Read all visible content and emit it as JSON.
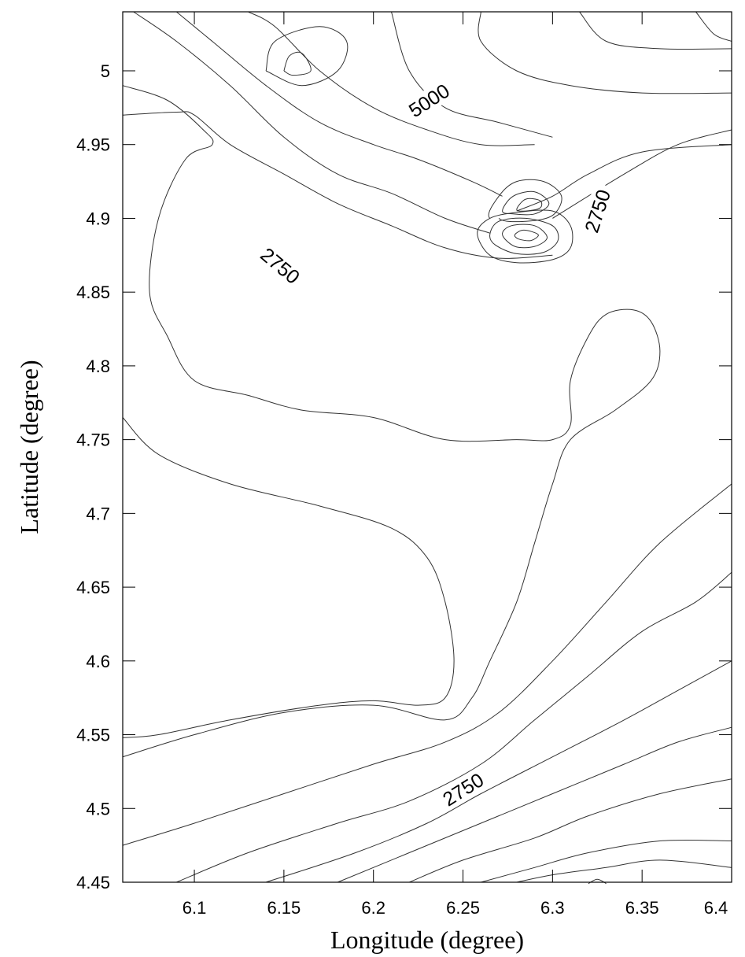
{
  "chart_data": {
    "type": "contour",
    "title": "",
    "xlabel": "Longitude (degree)",
    "ylabel": "Latitude (degree)",
    "xlim": [
      6.06,
      6.4
    ],
    "ylim": [
      4.45,
      5.04
    ],
    "x_ticks": [
      {
        "value": 6.1,
        "label": "6.1"
      },
      {
        "value": 6.15,
        "label": "6.15"
      },
      {
        "value": 6.2,
        "label": "6.2"
      },
      {
        "value": 6.25,
        "label": "6.25"
      },
      {
        "value": 6.3,
        "label": "6.3"
      },
      {
        "value": 6.35,
        "label": "6.35"
      },
      {
        "value": 6.4,
        "label": "6.4"
      }
    ],
    "y_ticks": [
      {
        "value": 4.45,
        "label": "4.45"
      },
      {
        "value": 4.5,
        "label": "4.5"
      },
      {
        "value": 4.55,
        "label": "4.55"
      },
      {
        "value": 4.6,
        "label": "4.6"
      },
      {
        "value": 4.65,
        "label": "4.65"
      },
      {
        "value": 4.7,
        "label": "4.7"
      },
      {
        "value": 4.75,
        "label": "4.75"
      },
      {
        "value": 4.8,
        "label": "4.8"
      },
      {
        "value": 4.85,
        "label": "4.85"
      },
      {
        "value": 4.9,
        "label": "4.9"
      },
      {
        "value": 4.95,
        "label": "4.95"
      },
      {
        "value": 5,
        "label": "5"
      }
    ],
    "contour_labels": [
      {
        "text": "5000",
        "x": 6.231,
        "y": 4.98,
        "angle": -33
      },
      {
        "text": "2750",
        "x": 6.148,
        "y": 4.868,
        "angle": 40
      },
      {
        "text": "2750",
        "x": 6.325,
        "y": 4.905,
        "angle": -72
      },
      {
        "text": "2750",
        "x": 6.25,
        "y": 4.513,
        "angle": -32
      }
    ],
    "contours": [
      [
        [
          6.14,
          5.0
        ],
        [
          6.145,
          5.02
        ],
        [
          6.17,
          5.03
        ],
        [
          6.185,
          5.02
        ],
        [
          6.18,
          5.0
        ],
        [
          6.16,
          4.99
        ],
        [
          6.14,
          5.0
        ]
      ],
      [
        [
          6.15,
          5.0
        ],
        [
          6.153,
          5.01
        ],
        [
          6.16,
          5.012
        ],
        [
          6.165,
          5.0
        ],
        [
          6.155,
          4.997
        ],
        [
          6.15,
          5.0
        ]
      ],
      [
        [
          6.06,
          4.97
        ],
        [
          6.09,
          4.972
        ],
        [
          6.1,
          4.97
        ],
        [
          6.12,
          4.95
        ],
        [
          6.15,
          4.93
        ],
        [
          6.18,
          4.91
        ],
        [
          6.21,
          4.895
        ],
        [
          6.24,
          4.88
        ],
        [
          6.27,
          4.873
        ],
        [
          6.3,
          4.875
        ]
      ],
      [
        [
          6.066,
          5.04
        ],
        [
          6.09,
          5.02
        ],
        [
          6.12,
          4.99
        ],
        [
          6.15,
          4.955
        ],
        [
          6.18,
          4.93
        ],
        [
          6.21,
          4.917
        ],
        [
          6.24,
          4.9
        ],
        [
          6.265,
          4.89
        ]
      ],
      [
        [
          6.09,
          5.04
        ],
        [
          6.11,
          5.02
        ],
        [
          6.14,
          4.99
        ],
        [
          6.17,
          4.965
        ],
        [
          6.2,
          4.95
        ],
        [
          6.225,
          4.94
        ],
        [
          6.255,
          4.925
        ],
        [
          6.272,
          4.915
        ]
      ],
      [
        [
          6.13,
          5.04
        ],
        [
          6.145,
          5.03
        ],
        [
          6.17,
          5.0
        ],
        [
          6.2,
          4.975
        ],
        [
          6.23,
          4.96
        ],
        [
          6.26,
          4.95
        ],
        [
          6.29,
          4.95
        ]
      ],
      [
        [
          6.21,
          5.04
        ],
        [
          6.22,
          5.0
        ],
        [
          6.24,
          4.975
        ],
        [
          6.27,
          4.965
        ],
        [
          6.3,
          4.955
        ]
      ],
      [
        [
          6.26,
          5.04
        ],
        [
          6.26,
          5.02
        ],
        [
          6.28,
          5.0
        ],
        [
          6.31,
          4.99
        ],
        [
          6.35,
          4.985
        ],
        [
          6.4,
          4.985
        ]
      ],
      [
        [
          6.3,
          4.9
        ],
        [
          6.34,
          4.93
        ],
        [
          6.37,
          4.95
        ],
        [
          6.4,
          4.96
        ]
      ],
      [
        [
          6.28,
          4.905
        ],
        [
          6.3,
          4.915
        ],
        [
          6.32,
          4.93
        ],
        [
          6.35,
          4.945
        ],
        [
          6.4,
          4.95
        ]
      ],
      [
        [
          6.315,
          5.04
        ],
        [
          6.33,
          5.02
        ],
        [
          6.36,
          5.015
        ],
        [
          6.4,
          5.015
        ]
      ],
      [
        [
          6.38,
          5.04
        ],
        [
          6.39,
          5.025
        ],
        [
          6.4,
          5.02
        ]
      ],
      [
        [
          6.06,
          4.99
        ],
        [
          6.085,
          4.98
        ],
        [
          6.105,
          4.96
        ],
        [
          6.11,
          4.95
        ],
        [
          6.095,
          4.94
        ],
        [
          6.08,
          4.9
        ],
        [
          6.075,
          4.85
        ],
        [
          6.085,
          4.82
        ],
        [
          6.1,
          4.79
        ],
        [
          6.13,
          4.78
        ],
        [
          6.16,
          4.77
        ],
        [
          6.2,
          4.765
        ],
        [
          6.24,
          4.75
        ],
        [
          6.28,
          4.75
        ],
        [
          6.3,
          4.75
        ],
        [
          6.31,
          4.76
        ],
        [
          6.31,
          4.79
        ],
        [
          6.32,
          4.82
        ],
        [
          6.33,
          4.835
        ],
        [
          6.345,
          4.838
        ],
        [
          6.355,
          4.83
        ],
        [
          6.36,
          4.81
        ],
        [
          6.355,
          4.79
        ],
        [
          6.335,
          4.77
        ],
        [
          6.31,
          4.75
        ],
        [
          6.3,
          4.72
        ],
        [
          6.29,
          4.68
        ],
        [
          6.28,
          4.64
        ],
        [
          6.265,
          4.6
        ],
        [
          6.255,
          4.575
        ],
        [
          6.24,
          4.56
        ],
        [
          6.2,
          4.57
        ],
        [
          6.15,
          4.565
        ],
        [
          6.1,
          4.55
        ],
        [
          6.06,
          4.535
        ]
      ],
      [
        [
          6.06,
          4.765
        ],
        [
          6.08,
          4.74
        ],
        [
          6.12,
          4.72
        ],
        [
          6.17,
          4.705
        ],
        [
          6.21,
          4.69
        ],
        [
          6.23,
          4.67
        ],
        [
          6.24,
          4.64
        ],
        [
          6.245,
          4.6
        ],
        [
          6.24,
          4.575
        ],
        [
          6.225,
          4.57
        ],
        [
          6.2,
          4.573
        ],
        [
          6.17,
          4.57
        ],
        [
          6.12,
          4.56
        ],
        [
          6.08,
          4.55
        ],
        [
          6.06,
          4.548
        ]
      ],
      [
        [
          6.06,
          4.475
        ],
        [
          6.1,
          4.49
        ],
        [
          6.15,
          4.51
        ],
        [
          6.2,
          4.53
        ],
        [
          6.24,
          4.545
        ],
        [
          6.27,
          4.565
        ],
        [
          6.3,
          4.6
        ],
        [
          6.33,
          4.64
        ],
        [
          6.36,
          4.68
        ],
        [
          6.4,
          4.72
        ]
      ],
      [
        [
          6.09,
          4.45
        ],
        [
          6.13,
          4.47
        ],
        [
          6.18,
          4.49
        ],
        [
          6.22,
          4.505
        ],
        [
          6.26,
          4.53
        ],
        [
          6.29,
          4.56
        ],
        [
          6.32,
          4.59
        ],
        [
          6.35,
          4.62
        ],
        [
          6.38,
          4.64
        ],
        [
          6.4,
          4.66
        ]
      ],
      [
        [
          6.14,
          4.45
        ],
        [
          6.19,
          4.47
        ],
        [
          6.23,
          4.49
        ],
        [
          6.26,
          4.51
        ],
        [
          6.3,
          4.535
        ],
        [
          6.34,
          4.56
        ],
        [
          6.37,
          4.58
        ],
        [
          6.4,
          4.6
        ]
      ],
      [
        [
          6.18,
          4.45
        ],
        [
          6.22,
          4.47
        ],
        [
          6.26,
          4.49
        ],
        [
          6.3,
          4.51
        ],
        [
          6.34,
          4.53
        ],
        [
          6.37,
          4.545
        ],
        [
          6.4,
          4.555
        ]
      ],
      [
        [
          6.22,
          4.45
        ],
        [
          6.25,
          4.465
        ],
        [
          6.29,
          4.48
        ],
        [
          6.32,
          4.495
        ],
        [
          6.36,
          4.51
        ],
        [
          6.4,
          4.52
        ]
      ],
      [
        [
          6.26,
          4.45
        ],
        [
          6.29,
          4.46
        ],
        [
          6.32,
          4.47
        ],
        [
          6.36,
          4.478
        ],
        [
          6.4,
          4.478
        ]
      ],
      [
        [
          6.28,
          4.45
        ],
        [
          6.3,
          4.455
        ],
        [
          6.33,
          4.46
        ],
        [
          6.36,
          4.465
        ],
        [
          6.4,
          4.46
        ]
      ]
    ],
    "closed_contours": [
      [
        [
          6.265,
          4.9
        ],
        [
          6.27,
          4.915
        ],
        [
          6.28,
          4.925
        ],
        [
          6.295,
          4.925
        ],
        [
          6.305,
          4.915
        ],
        [
          6.3,
          4.902
        ],
        [
          6.285,
          4.898
        ],
        [
          6.27,
          4.9
        ]
      ],
      [
        [
          6.272,
          4.905
        ],
        [
          6.278,
          4.915
        ],
        [
          6.29,
          4.918
        ],
        [
          6.298,
          4.91
        ],
        [
          6.29,
          4.903
        ],
        [
          6.278,
          4.903
        ],
        [
          6.272,
          4.905
        ]
      ],
      [
        [
          6.28,
          4.906
        ],
        [
          6.285,
          4.913
        ],
        [
          6.293,
          4.912
        ],
        [
          6.293,
          4.907
        ],
        [
          6.285,
          4.905
        ],
        [
          6.28,
          4.906
        ]
      ],
      [
        [
          6.258,
          4.89
        ],
        [
          6.265,
          4.9
        ],
        [
          6.28,
          4.904
        ],
        [
          6.3,
          4.905
        ],
        [
          6.31,
          4.895
        ],
        [
          6.31,
          4.88
        ],
        [
          6.3,
          4.872
        ],
        [
          6.28,
          4.87
        ],
        [
          6.265,
          4.875
        ],
        [
          6.258,
          4.89
        ]
      ],
      [
        [
          6.265,
          4.889
        ],
        [
          6.27,
          4.898
        ],
        [
          6.285,
          4.9
        ],
        [
          6.3,
          4.895
        ],
        [
          6.303,
          4.885
        ],
        [
          6.295,
          4.877
        ],
        [
          6.28,
          4.876
        ],
        [
          6.268,
          4.882
        ],
        [
          6.265,
          4.889
        ]
      ],
      [
        [
          6.272,
          4.889
        ],
        [
          6.277,
          4.895
        ],
        [
          6.29,
          4.895
        ],
        [
          6.297,
          4.887
        ],
        [
          6.29,
          4.881
        ],
        [
          6.279,
          4.881
        ],
        [
          6.272,
          4.889
        ]
      ],
      [
        [
          6.279,
          4.889
        ],
        [
          6.284,
          4.892
        ],
        [
          6.292,
          4.889
        ],
        [
          6.288,
          4.885
        ],
        [
          6.281,
          4.886
        ],
        [
          6.279,
          4.889
        ]
      ],
      [
        [
          6.32,
          4.449
        ],
        [
          6.325,
          4.452
        ],
        [
          6.33,
          4.449
        ]
      ]
    ]
  }
}
